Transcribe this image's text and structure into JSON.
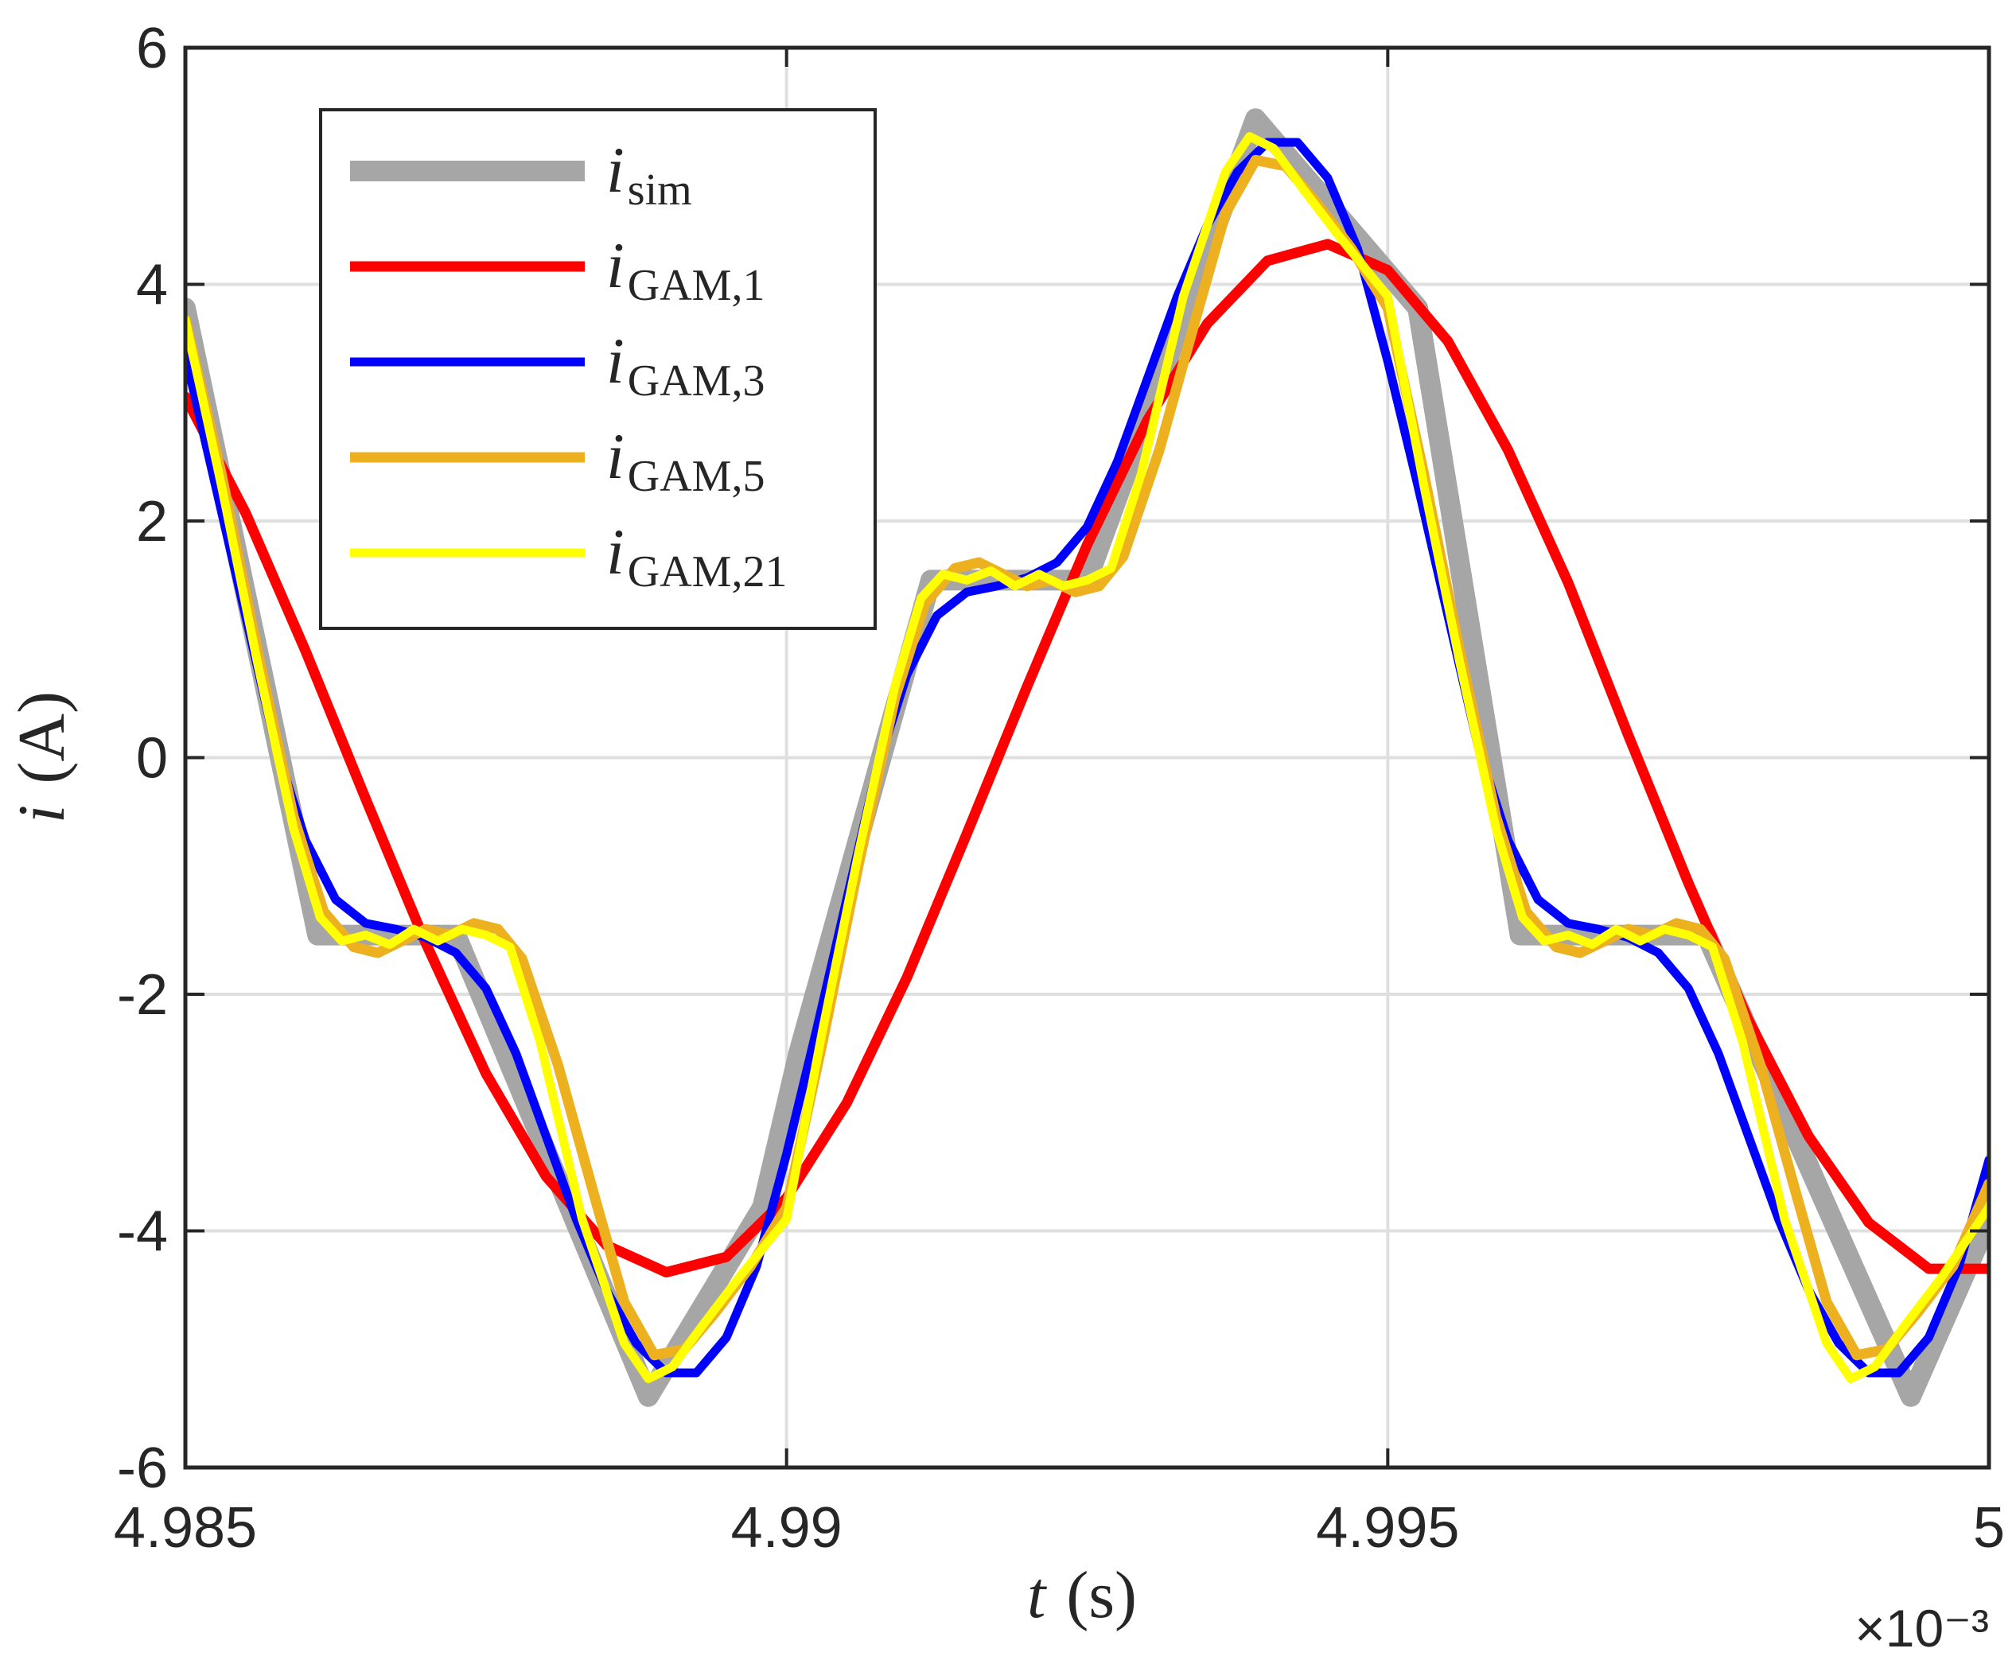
{
  "chart_data": {
    "type": "line",
    "title": "",
    "xlabel": {
      "symbol": "t",
      "unit": "(s)"
    },
    "ylabel": {
      "symbol": "i",
      "unit": "(A)"
    },
    "x_scale_label": "×10⁻³",
    "xlim": [
      4.985,
      5.0
    ],
    "ylim": [
      -6,
      6
    ],
    "xticks": [
      4.985,
      4.99,
      4.995,
      5.0
    ],
    "xtick_labels": [
      "4.985",
      "4.99",
      "4.995",
      "5"
    ],
    "yticks": [
      -6,
      -4,
      -2,
      0,
      2,
      4,
      6
    ],
    "ytick_labels": [
      "-6",
      "-4",
      "-2",
      "0",
      "2",
      "4",
      "6"
    ],
    "grid": true,
    "legend": {
      "position": "top-left"
    },
    "series": [
      {
        "name": "i_sim",
        "label_main": "i",
        "label_sub": "sim",
        "color": "#A6A6A6",
        "x": [
          4.985,
          4.9861,
          4.98725,
          4.98885,
          4.9898,
          4.9901,
          4.9912,
          4.9925,
          4.9939,
          4.99525,
          4.9961,
          4.99765,
          4.99935,
          5.0
        ],
        "y": [
          3.8,
          -1.5,
          -1.5,
          -5.4,
          -3.8,
          -2.5,
          1.5,
          1.5,
          5.4,
          3.8,
          -1.5,
          -1.5,
          -5.4,
          -3.9
        ]
      },
      {
        "name": "i_GAM,1",
        "label_main": "i",
        "label_sub": "GAM,1",
        "color": "#FF0000",
        "x": [
          4.985,
          4.9855,
          4.986,
          4.9865,
          4.987,
          4.9875,
          4.988,
          4.9885,
          4.989,
          4.9895,
          4.99,
          4.9905,
          4.991,
          4.9915,
          4.992,
          4.9925,
          4.993,
          4.9935,
          4.994,
          4.9945,
          4.995,
          4.9955,
          4.996,
          4.9965,
          4.997,
          4.9975,
          4.998,
          4.9985,
          4.999,
          4.9995,
          5.0
        ],
        "y": [
          3.05,
          2.07,
          0.9,
          -0.35,
          -1.57,
          -2.67,
          -3.54,
          -4.12,
          -4.35,
          -4.22,
          -3.72,
          -2.92,
          -1.86,
          -0.64,
          0.6,
          1.8,
          2.85,
          3.67,
          4.2,
          4.34,
          4.12,
          3.52,
          2.6,
          1.48,
          0.19,
          -1.06,
          -2.22,
          -3.2,
          -3.93,
          -4.32,
          -4.32
        ]
      },
      {
        "name": "i_GAM,3",
        "label_main": "i",
        "label_sub": "GAM,3",
        "color": "#0000FF",
        "x": [
          4.985,
          4.98525,
          4.9855,
          4.98575,
          4.986,
          4.98625,
          4.9865,
          4.98675,
          4.987,
          4.98725,
          4.9875,
          4.98775,
          4.988,
          4.98825,
          4.9885,
          4.98875,
          4.989,
          4.98925,
          4.9895,
          4.98975,
          4.99,
          4.99025,
          4.9905,
          4.99075,
          4.991,
          4.99125,
          4.9915,
          4.99175,
          4.992,
          4.99225,
          4.9925,
          4.99275,
          4.993,
          4.99325,
          4.9935,
          4.99375,
          4.994,
          4.99425,
          4.9945,
          4.99475,
          4.995,
          4.99525,
          4.9955,
          4.99575,
          4.996,
          4.99625,
          4.9965,
          4.99675,
          4.997,
          4.99725,
          4.9975,
          4.99775,
          4.998,
          4.99825,
          4.9985,
          4.99875,
          4.999,
          4.99925,
          4.9995,
          4.99975,
          5.0
        ],
        "y": [
          3.4,
          2.3,
          1.2,
          0.1,
          -0.7,
          -1.2,
          -1.4,
          -1.45,
          -1.52,
          -1.65,
          -1.95,
          -2.5,
          -3.2,
          -3.9,
          -4.5,
          -4.95,
          -5.2,
          -5.2,
          -4.9,
          -4.3,
          -3.35,
          -2.3,
          -1.2,
          -0.1,
          0.7,
          1.2,
          1.4,
          1.45,
          1.52,
          1.65,
          1.95,
          2.5,
          3.2,
          3.9,
          4.5,
          4.95,
          5.2,
          5.2,
          4.9,
          4.3,
          3.35,
          2.3,
          1.2,
          0.1,
          -0.7,
          -1.2,
          -1.4,
          -1.45,
          -1.52,
          -1.65,
          -1.95,
          -2.5,
          -3.2,
          -3.9,
          -4.5,
          -4.95,
          -5.2,
          -5.2,
          -4.9,
          -4.3,
          -3.4
        ]
      },
      {
        "name": "i_GAM,5",
        "label_main": "i",
        "label_sub": "GAM,5",
        "color": "#EDB120",
        "x": [
          4.985,
          4.9853,
          4.9856,
          4.9859,
          4.98615,
          4.9864,
          4.9866,
          4.9868,
          4.987,
          4.9872,
          4.9874,
          4.9876,
          4.9878,
          4.9881,
          4.9884,
          4.98865,
          4.9889,
          4.98915,
          4.9894,
          4.9897,
          4.99,
          4.9903,
          4.9906,
          4.9909,
          4.99115,
          4.9914,
          4.9916,
          4.9918,
          4.992,
          4.9922,
          4.9924,
          4.9926,
          4.9928,
          4.9931,
          4.9934,
          4.99365,
          4.9939,
          4.99415,
          4.9944,
          4.9947,
          4.995,
          4.9953,
          4.9956,
          4.9959,
          4.99615,
          4.9964,
          4.9966,
          4.9968,
          4.997,
          4.9972,
          4.9974,
          4.9976,
          4.9978,
          4.9981,
          4.9984,
          4.99865,
          4.9989,
          4.99915,
          4.9994,
          4.9997,
          5.0
        ],
        "y": [
          3.7,
          2.4,
          0.9,
          -0.5,
          -1.3,
          -1.6,
          -1.65,
          -1.55,
          -1.45,
          -1.5,
          -1.4,
          -1.45,
          -1.7,
          -2.6,
          -3.7,
          -4.6,
          -5.05,
          -5.0,
          -4.7,
          -4.3,
          -3.8,
          -2.4,
          -0.9,
          0.5,
          1.3,
          1.6,
          1.65,
          1.55,
          1.45,
          1.5,
          1.4,
          1.45,
          1.7,
          2.6,
          3.7,
          4.6,
          5.05,
          5.0,
          4.7,
          4.3,
          3.8,
          2.4,
          0.9,
          -0.5,
          -1.3,
          -1.6,
          -1.65,
          -1.55,
          -1.45,
          -1.5,
          -1.4,
          -1.45,
          -1.7,
          -2.6,
          -3.7,
          -4.6,
          -5.05,
          -5.0,
          -4.7,
          -4.3,
          -3.6
        ]
      },
      {
        "name": "i_GAM,21",
        "label_main": "i",
        "label_sub": "GAM,21",
        "color": "#FFFF00",
        "x": [
          4.985,
          4.9853,
          4.9856,
          4.9859,
          4.98612,
          4.9863,
          4.9865,
          4.9867,
          4.9869,
          4.9871,
          4.9873,
          4.9875,
          4.9877,
          4.98795,
          4.9883,
          4.98865,
          4.98885,
          4.98905,
          4.9893,
          4.9896,
          4.99,
          4.9903,
          4.9906,
          4.9909,
          4.99112,
          4.9913,
          4.9915,
          4.9917,
          4.9919,
          4.9921,
          4.9923,
          4.9925,
          4.9927,
          4.99295,
          4.9933,
          4.99365,
          4.99385,
          4.99405,
          4.9943,
          4.9946,
          4.995,
          4.9953,
          4.9956,
          4.9959,
          4.99612,
          4.9963,
          4.9965,
          4.9967,
          4.9969,
          4.9971,
          4.9973,
          4.9975,
          4.9977,
          4.99795,
          4.9983,
          4.99865,
          4.99885,
          4.99905,
          4.9993,
          4.9996,
          5.0
        ],
        "y": [
          3.7,
          2.3,
          0.8,
          -0.6,
          -1.35,
          -1.55,
          -1.5,
          -1.58,
          -1.45,
          -1.55,
          -1.45,
          -1.5,
          -1.6,
          -2.4,
          -3.9,
          -4.95,
          -5.25,
          -5.15,
          -4.8,
          -4.4,
          -3.9,
          -2.3,
          -0.8,
          0.6,
          1.35,
          1.55,
          1.5,
          1.58,
          1.45,
          1.55,
          1.45,
          1.5,
          1.6,
          2.4,
          3.9,
          4.95,
          5.25,
          5.15,
          4.8,
          4.4,
          3.9,
          2.3,
          0.8,
          -0.6,
          -1.35,
          -1.55,
          -1.5,
          -1.58,
          -1.45,
          -1.55,
          -1.45,
          -1.5,
          -1.6,
          -2.4,
          -3.9,
          -4.95,
          -5.25,
          -5.15,
          -4.8,
          -4.4,
          -3.8
        ]
      }
    ]
  }
}
